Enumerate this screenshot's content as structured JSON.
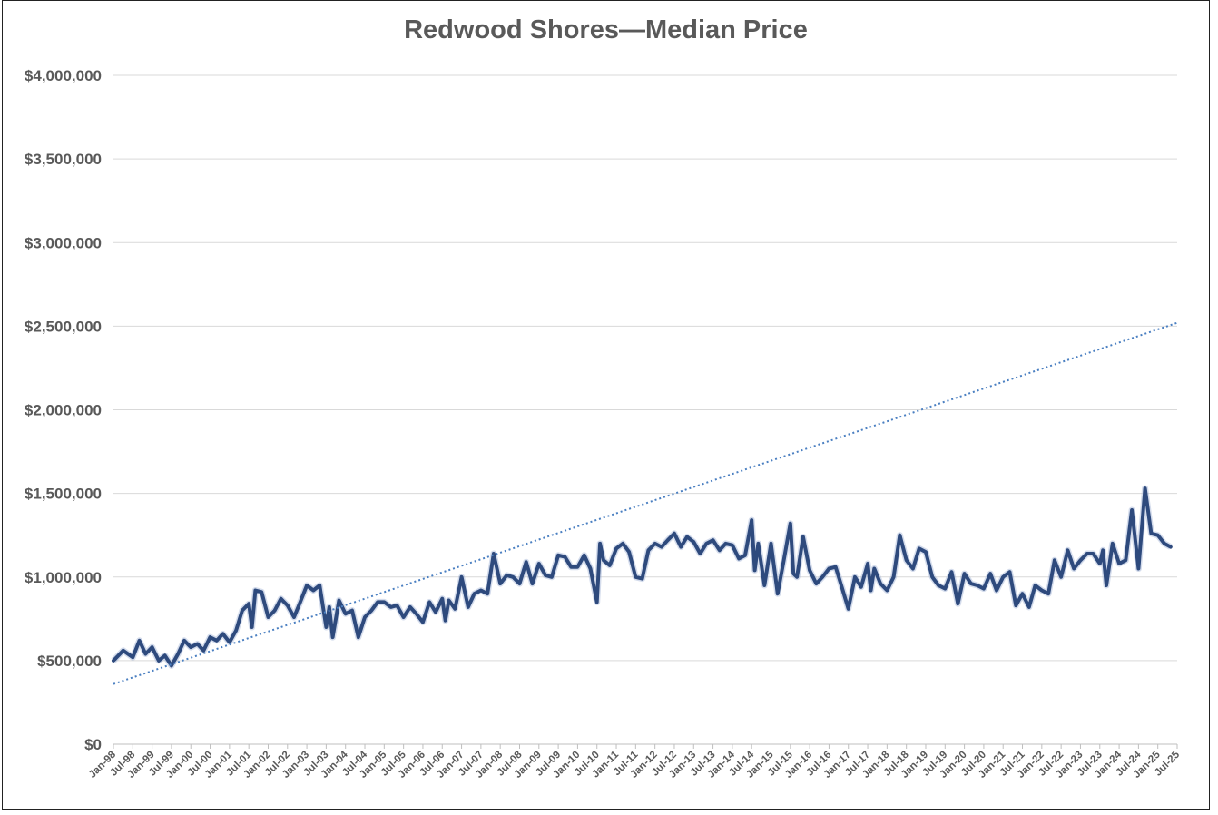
{
  "chart_data": {
    "type": "line",
    "title": "Redwood Shores—Median Price",
    "xlabel": "",
    "ylabel": "",
    "ylim": [
      0,
      4000000
    ],
    "yticks": [
      "$0",
      "$500,000",
      "$1,000,000",
      "$1,500,000",
      "$2,000,000",
      "$2,500,000",
      "$3,000,000",
      "$3,500,000",
      "$4,000,000"
    ],
    "xticks": [
      "Jan-98",
      "Jul-98",
      "Jan-99",
      "Jul-99",
      "Jan-00",
      "Jul-00",
      "Jan-01",
      "Jul-01",
      "Jan-02",
      "Jul-02",
      "Jan-03",
      "Jul-03",
      "Jan-04",
      "Jul-04",
      "Jan-05",
      "Jul-05",
      "Jan-06",
      "Jul-06",
      "Jan-07",
      "Jul-07",
      "Jan-08",
      "Jul-08",
      "Jan-09",
      "Jul-09",
      "Jan-10",
      "Jul-10",
      "Jan-11",
      "Jul-11",
      "Jan-12",
      "Jul-12",
      "Jan-13",
      "Jul-13",
      "Jan-14",
      "Jul-14",
      "Jan-15",
      "Jul-15",
      "Jan-16",
      "Jul-16",
      "Jan-17",
      "Jul-17",
      "Jan-18",
      "Jul-18",
      "Jan-19",
      "Jul-19",
      "Jan-20",
      "Jul-20",
      "Jan-21",
      "Jul-21",
      "Jan-22",
      "Jul-22",
      "Jan-23",
      "Jul-23",
      "Jan-24",
      "Jul-24",
      "Jan-25",
      "Jul-25"
    ],
    "grid": true,
    "series": [
      {
        "line_color": "#2e4a7d",
        "points": [
          [
            1998.0,
            500000
          ],
          [
            1998.25,
            560000
          ],
          [
            1998.5,
            520000
          ],
          [
            1998.67,
            620000
          ],
          [
            1998.83,
            540000
          ],
          [
            1999.0,
            580000
          ],
          [
            1999.17,
            500000
          ],
          [
            1999.33,
            530000
          ],
          [
            1999.5,
            470000
          ],
          [
            1999.67,
            540000
          ],
          [
            1999.83,
            620000
          ],
          [
            2000.0,
            580000
          ],
          [
            2000.17,
            600000
          ],
          [
            2000.33,
            560000
          ],
          [
            2000.5,
            640000
          ],
          [
            2000.67,
            620000
          ],
          [
            2000.83,
            660000
          ],
          [
            2001.0,
            610000
          ],
          [
            2001.17,
            680000
          ],
          [
            2001.33,
            800000
          ],
          [
            2001.5,
            840000
          ],
          [
            2001.58,
            700000
          ],
          [
            2001.67,
            920000
          ],
          [
            2001.83,
            910000
          ],
          [
            2002.0,
            760000
          ],
          [
            2002.17,
            800000
          ],
          [
            2002.33,
            870000
          ],
          [
            2002.5,
            830000
          ],
          [
            2002.67,
            760000
          ],
          [
            2002.83,
            850000
          ],
          [
            2003.0,
            950000
          ],
          [
            2003.17,
            920000
          ],
          [
            2003.33,
            950000
          ],
          [
            2003.5,
            700000
          ],
          [
            2003.58,
            820000
          ],
          [
            2003.67,
            640000
          ],
          [
            2003.83,
            860000
          ],
          [
            2004.0,
            780000
          ],
          [
            2004.17,
            800000
          ],
          [
            2004.33,
            640000
          ],
          [
            2004.5,
            760000
          ],
          [
            2004.67,
            800000
          ],
          [
            2004.83,
            850000
          ],
          [
            2005.0,
            850000
          ],
          [
            2005.17,
            820000
          ],
          [
            2005.33,
            830000
          ],
          [
            2005.5,
            760000
          ],
          [
            2005.67,
            820000
          ],
          [
            2005.83,
            780000
          ],
          [
            2006.0,
            730000
          ],
          [
            2006.17,
            850000
          ],
          [
            2006.33,
            790000
          ],
          [
            2006.5,
            870000
          ],
          [
            2006.58,
            740000
          ],
          [
            2006.67,
            860000
          ],
          [
            2006.83,
            810000
          ],
          [
            2007.0,
            1000000
          ],
          [
            2007.17,
            820000
          ],
          [
            2007.33,
            900000
          ],
          [
            2007.5,
            920000
          ],
          [
            2007.67,
            900000
          ],
          [
            2007.83,
            1140000
          ],
          [
            2008.0,
            960000
          ],
          [
            2008.17,
            1010000
          ],
          [
            2008.33,
            1000000
          ],
          [
            2008.5,
            960000
          ],
          [
            2008.67,
            1090000
          ],
          [
            2008.83,
            960000
          ],
          [
            2009.0,
            1080000
          ],
          [
            2009.17,
            1010000
          ],
          [
            2009.33,
            1000000
          ],
          [
            2009.5,
            1130000
          ],
          [
            2009.67,
            1120000
          ],
          [
            2009.83,
            1060000
          ],
          [
            2010.0,
            1060000
          ],
          [
            2010.17,
            1130000
          ],
          [
            2010.33,
            1050000
          ],
          [
            2010.5,
            850000
          ],
          [
            2010.58,
            1200000
          ],
          [
            2010.67,
            1100000
          ],
          [
            2010.83,
            1070000
          ],
          [
            2011.0,
            1170000
          ],
          [
            2011.17,
            1200000
          ],
          [
            2011.33,
            1150000
          ],
          [
            2011.5,
            1000000
          ],
          [
            2011.67,
            990000
          ],
          [
            2011.83,
            1160000
          ],
          [
            2012.0,
            1200000
          ],
          [
            2012.17,
            1180000
          ],
          [
            2012.33,
            1220000
          ],
          [
            2012.5,
            1260000
          ],
          [
            2012.67,
            1180000
          ],
          [
            2012.83,
            1240000
          ],
          [
            2013.0,
            1210000
          ],
          [
            2013.17,
            1140000
          ],
          [
            2013.33,
            1200000
          ],
          [
            2013.5,
            1220000
          ],
          [
            2013.67,
            1160000
          ],
          [
            2013.83,
            1200000
          ],
          [
            2014.0,
            1190000
          ],
          [
            2014.17,
            1110000
          ],
          [
            2014.33,
            1130000
          ],
          [
            2014.5,
            1340000
          ],
          [
            2014.58,
            1040000
          ],
          [
            2014.67,
            1200000
          ],
          [
            2014.83,
            950000
          ],
          [
            2015.0,
            1200000
          ],
          [
            2015.17,
            900000
          ],
          [
            2015.33,
            1100000
          ],
          [
            2015.5,
            1320000
          ],
          [
            2015.58,
            1020000
          ],
          [
            2015.67,
            1000000
          ],
          [
            2015.83,
            1240000
          ],
          [
            2016.0,
            1040000
          ],
          [
            2016.17,
            960000
          ],
          [
            2016.33,
            1000000
          ],
          [
            2016.5,
            1050000
          ],
          [
            2016.67,
            1060000
          ],
          [
            2016.83,
            940000
          ],
          [
            2017.0,
            810000
          ],
          [
            2017.17,
            1000000
          ],
          [
            2017.33,
            940000
          ],
          [
            2017.5,
            1080000
          ],
          [
            2017.58,
            920000
          ],
          [
            2017.67,
            1050000
          ],
          [
            2017.83,
            960000
          ],
          [
            2018.0,
            920000
          ],
          [
            2018.17,
            1000000
          ],
          [
            2018.33,
            1250000
          ],
          [
            2018.5,
            1100000
          ],
          [
            2018.67,
            1050000
          ],
          [
            2018.83,
            1170000
          ],
          [
            2019.0,
            1150000
          ],
          [
            2019.17,
            1000000
          ],
          [
            2019.33,
            950000
          ],
          [
            2019.5,
            930000
          ],
          [
            2019.67,
            1030000
          ],
          [
            2019.83,
            840000
          ],
          [
            2020.0,
            1020000
          ],
          [
            2020.17,
            960000
          ],
          [
            2020.33,
            950000
          ],
          [
            2020.5,
            930000
          ],
          [
            2020.67,
            1020000
          ],
          [
            2020.83,
            920000
          ],
          [
            2021.0,
            1000000
          ],
          [
            2021.17,
            1030000
          ],
          [
            2021.33,
            830000
          ],
          [
            2021.5,
            900000
          ],
          [
            2021.67,
            820000
          ],
          [
            2021.83,
            950000
          ],
          [
            2022.0,
            920000
          ],
          [
            2022.17,
            900000
          ],
          [
            2022.33,
            1100000
          ],
          [
            2022.5,
            1000000
          ],
          [
            2022.67,
            1160000
          ],
          [
            2022.83,
            1050000
          ],
          [
            2023.0,
            1100000
          ],
          [
            2023.17,
            1140000
          ],
          [
            2023.33,
            1140000
          ],
          [
            2023.5,
            1080000
          ],
          [
            2023.58,
            1160000
          ],
          [
            2023.67,
            950000
          ],
          [
            2023.83,
            1200000
          ],
          [
            2024.0,
            1080000
          ],
          [
            2024.17,
            1100000
          ],
          [
            2024.33,
            1400000
          ],
          [
            2024.5,
            1050000
          ],
          [
            2024.67,
            1530000
          ],
          [
            2024.83,
            1260000
          ],
          [
            2025.0,
            1250000
          ],
          [
            2025.17,
            1200000
          ],
          [
            2025.33,
            1180000
          ]
        ]
      }
    ],
    "trendline": {
      "style": "dotted",
      "color": "#4a7fc1",
      "from": [
        1998.0,
        360000
      ],
      "to": [
        2025.5,
        2520000
      ]
    }
  }
}
